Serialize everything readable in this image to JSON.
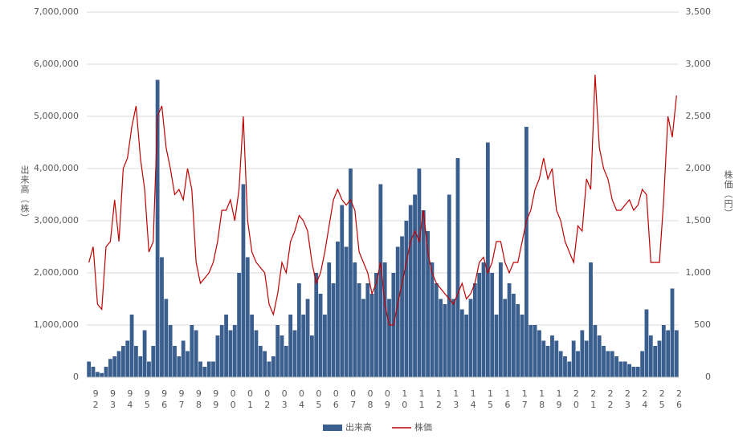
{
  "chart_data": {
    "type": "combo",
    "categories": [
      "92",
      null,
      null,
      null,
      "93",
      null,
      null,
      null,
      "94",
      null,
      null,
      null,
      "95",
      null,
      null,
      null,
      "96",
      null,
      null,
      null,
      "97",
      null,
      null,
      null,
      "98",
      null,
      null,
      null,
      "99",
      null,
      null,
      null,
      "00",
      null,
      null,
      null,
      "01",
      null,
      null,
      null,
      "02",
      null,
      null,
      null,
      "03",
      null,
      null,
      null,
      "04",
      null,
      null,
      null,
      "05",
      null,
      null,
      null,
      "06",
      null,
      null,
      null,
      "07",
      null,
      null,
      null,
      "08",
      null,
      null,
      null,
      "09",
      null,
      null,
      null,
      "10",
      null,
      null,
      null,
      "11",
      null,
      null,
      null,
      "12",
      null,
      null,
      null,
      "13",
      null,
      null,
      null,
      "14",
      null,
      null,
      null,
      "15",
      null,
      null,
      null,
      "16",
      null,
      null,
      null,
      "17",
      null,
      null,
      null,
      "18",
      null,
      null,
      null,
      "19",
      null,
      null,
      null,
      "20",
      null,
      null,
      null,
      "21",
      null,
      null,
      null,
      "22",
      null,
      null,
      null,
      "23",
      null,
      null,
      null,
      "24",
      null,
      null,
      null,
      "25",
      null,
      null,
      null,
      "26",
      null
    ],
    "series": [
      {
        "name": "出来高",
        "type": "bar",
        "color": "#3a5f8f",
        "values": [
          300000,
          200000,
          100000,
          80000,
          200000,
          350000,
          400000,
          500000,
          600000,
          700000,
          1200000,
          600000,
          400000,
          900000,
          300000,
          600000,
          5700000,
          2300000,
          1500000,
          1000000,
          600000,
          400000,
          700000,
          500000,
          1000000,
          900000,
          300000,
          200000,
          300000,
          300000,
          800000,
          1000000,
          1200000,
          900000,
          1000000,
          2000000,
          3700000,
          2300000,
          1200000,
          900000,
          600000,
          500000,
          300000,
          400000,
          1000000,
          800000,
          600000,
          1200000,
          900000,
          1800000,
          1200000,
          1500000,
          800000,
          2000000,
          1600000,
          1200000,
          2200000,
          1800000,
          2600000,
          3300000,
          2500000,
          4000000,
          2200000,
          1800000,
          1500000,
          1800000,
          1600000,
          2000000,
          3700000,
          2200000,
          1500000,
          2000000,
          2500000,
          2700000,
          3000000,
          3300000,
          3500000,
          4000000,
          3200000,
          2800000,
          2200000,
          1800000,
          1500000,
          1400000,
          3500000,
          1500000,
          4200000,
          1300000,
          1200000,
          1500000,
          1800000,
          2000000,
          2200000,
          4500000,
          2000000,
          1200000,
          2200000,
          1500000,
          1800000,
          1600000,
          1400000,
          1200000,
          4800000,
          1000000,
          1000000,
          900000,
          700000,
          600000,
          800000,
          700000,
          500000,
          400000,
          300000,
          700000,
          500000,
          900000,
          700000,
          2200000,
          1000000,
          800000,
          600000,
          500000,
          500000,
          400000,
          300000,
          300000,
          250000,
          200000,
          200000,
          500000,
          1300000,
          800000,
          600000,
          700000,
          1000000,
          900000,
          1700000,
          900000
        ]
      },
      {
        "name": "株価",
        "type": "line",
        "axis": "y2",
        "color": "#c00000",
        "values": [
          1100,
          1250,
          700,
          650,
          1250,
          1300,
          1700,
          1300,
          2000,
          2100,
          2400,
          2600,
          2100,
          1800,
          1200,
          1300,
          2500,
          2600,
          2200,
          2000,
          1750,
          1800,
          1700,
          2000,
          1800,
          1100,
          900,
          950,
          1000,
          1100,
          1300,
          1600,
          1600,
          1700,
          1500,
          1800,
          2500,
          1500,
          1200,
          1100,
          1050,
          1000,
          700,
          600,
          800,
          1100,
          1000,
          1300,
          1400,
          1550,
          1500,
          1400,
          1100,
          900,
          1000,
          1200,
          1450,
          1700,
          1800,
          1700,
          1650,
          1700,
          1600,
          1200,
          1100,
          1000,
          800,
          900,
          1100,
          700,
          500,
          500,
          700,
          900,
          1100,
          1300,
          1400,
          1300,
          1600,
          1200,
          1000,
          900,
          850,
          800,
          750,
          700,
          800,
          900,
          750,
          800,
          900,
          1100,
          1150,
          1000,
          1100,
          1300,
          1300,
          1100,
          1000,
          1100,
          1100,
          1300,
          1500,
          1600,
          1800,
          1900,
          2100,
          1900,
          2000,
          1600,
          1500,
          1300,
          1200,
          1100,
          1450,
          1400,
          1900,
          1800,
          2900,
          2200,
          2000,
          1900,
          1700,
          1600,
          1600,
          1650,
          1700,
          1600,
          1650,
          1800,
          1750,
          1100,
          1100,
          1100,
          1700,
          2500,
          2300,
          2700
        ]
      }
    ],
    "y_label": "出来高（株）",
    "y2_label": "株価（円）",
    "ylim": [
      0,
      7000000
    ],
    "yticks": [
      0,
      {
        "value": 1000000,
        "label": "1,000,000"
      },
      {
        "value": 2000000,
        "label": "2,000,000"
      },
      {
        "value": 3000000,
        "label": "3,000,000"
      },
      {
        "value": 4000000,
        "label": "4,000,000"
      },
      {
        "value": 5000000,
        "label": "5,000,000"
      },
      {
        "value": 6000000,
        "label": "6,000,000"
      },
      {
        "value": 7000000,
        "label": "7,000,000"
      }
    ],
    "y2lim": [
      0,
      3500
    ],
    "y2ticks": [
      0,
      500,
      {
        "value": 1000,
        "label": "1,000"
      },
      {
        "value": 1500,
        "label": "1,500"
      },
      {
        "value": 2000,
        "label": "2,000"
      },
      {
        "value": 2500,
        "label": "2,500"
      },
      {
        "value": 3000,
        "label": "3,000"
      },
      {
        "value": 3500,
        "label": "3,500"
      }
    ],
    "grid": true,
    "legend": "bottom"
  }
}
